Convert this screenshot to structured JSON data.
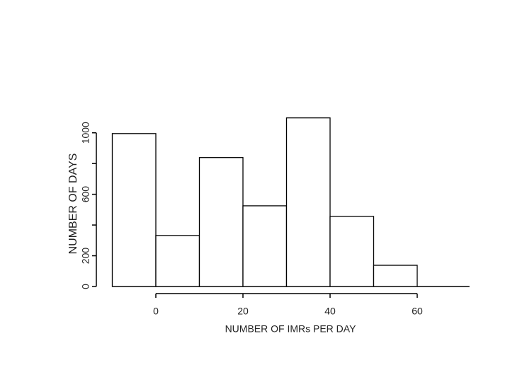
{
  "chart_data": {
    "type": "histogram",
    "x_label": "NUMBER OF IMRs PER DAY",
    "y_label": "NUMBER OF DAYS",
    "bins": [
      -10,
      0,
      10,
      20,
      30,
      40,
      50,
      60,
      70
    ],
    "counts": [
      995,
      332,
      839,
      525,
      1097,
      456,
      138,
      0
    ],
    "color": "#ffffff",
    "edge_color": "#000000",
    "xlim": [
      -10,
      72
    ],
    "ylim": [
      0,
      1100
    ],
    "xticks": [
      0,
      20,
      40,
      60
    ],
    "yticks": [
      0,
      200,
      600,
      1000
    ],
    "yminorticks": [
      400,
      800
    ],
    "grid": false
  }
}
